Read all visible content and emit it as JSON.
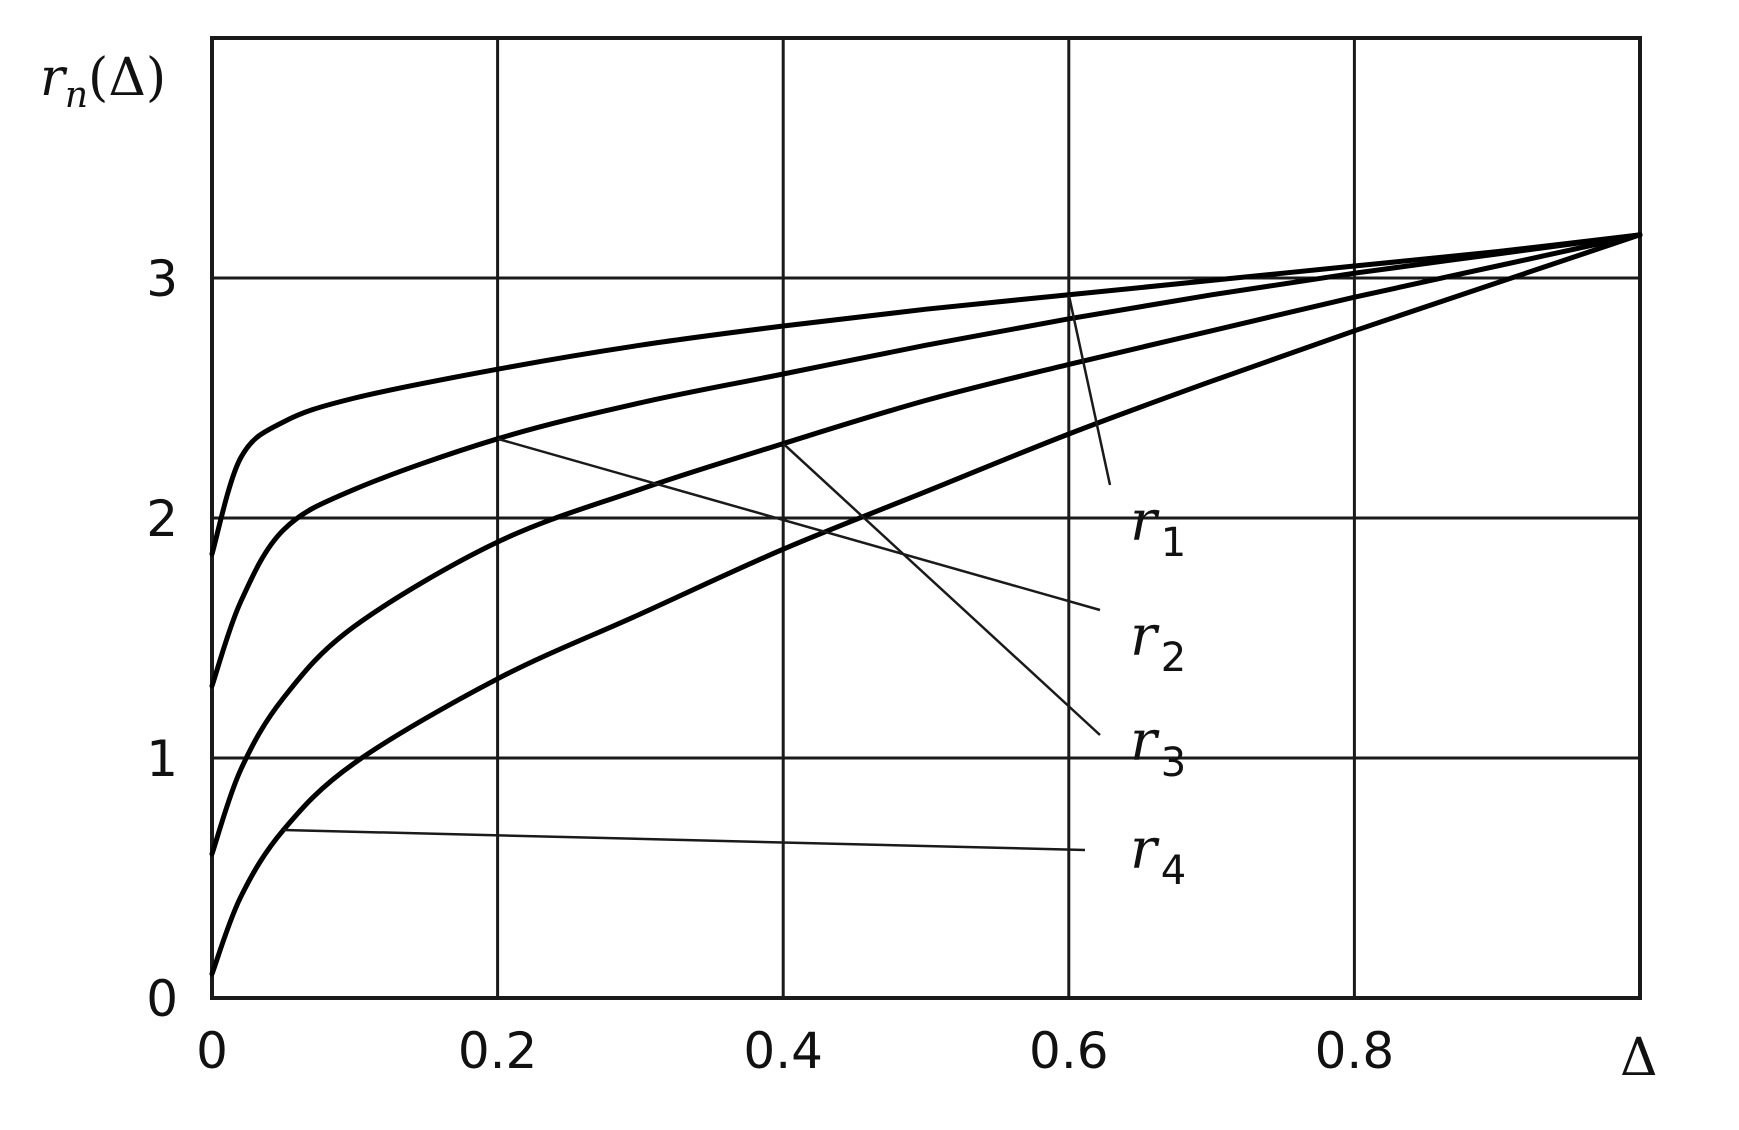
{
  "chart_data": {
    "type": "line",
    "title": "",
    "ylabel_var": "r",
    "ylabel_sub": "n",
    "ylabel_arg": "(Δ)",
    "xlabel": "Δ",
    "xlim": [
      0,
      1
    ],
    "ylim": [
      0,
      4
    ],
    "x_ticks": [
      "0",
      "0.2",
      "0.4",
      "0.6",
      "0.8"
    ],
    "y_ticks": [
      "0",
      "1",
      "2",
      "3"
    ],
    "grid": true,
    "series": [
      {
        "name": "r",
        "sub": "1",
        "x": [
          0,
          0.02,
          0.05,
          0.1,
          0.2,
          0.3,
          0.4,
          0.5,
          0.6,
          0.7,
          0.8,
          0.9,
          1.0
        ],
        "y": [
          1.85,
          2.25,
          2.4,
          2.5,
          2.62,
          2.72,
          2.8,
          2.87,
          2.93,
          2.99,
          3.05,
          3.11,
          3.18
        ]
      },
      {
        "name": "r",
        "sub": "2",
        "x": [
          0,
          0.02,
          0.05,
          0.1,
          0.2,
          0.3,
          0.4,
          0.5,
          0.6,
          0.7,
          0.8,
          0.9,
          1.0
        ],
        "y": [
          1.3,
          1.65,
          1.95,
          2.12,
          2.33,
          2.48,
          2.6,
          2.72,
          2.83,
          2.93,
          3.02,
          3.1,
          3.18
        ]
      },
      {
        "name": "r",
        "sub": "3",
        "x": [
          0,
          0.02,
          0.05,
          0.1,
          0.2,
          0.3,
          0.4,
          0.5,
          0.6,
          0.7,
          0.8,
          0.9,
          1.0
        ],
        "y": [
          0.6,
          0.95,
          1.25,
          1.55,
          1.9,
          2.12,
          2.31,
          2.49,
          2.64,
          2.78,
          2.92,
          3.05,
          3.18
        ]
      },
      {
        "name": "r",
        "sub": "4",
        "x": [
          0,
          0.02,
          0.05,
          0.1,
          0.2,
          0.3,
          0.4,
          0.5,
          0.6,
          0.7,
          0.8,
          0.9,
          1.0
        ],
        "y": [
          0.1,
          0.42,
          0.7,
          0.98,
          1.33,
          1.6,
          1.87,
          2.11,
          2.35,
          2.57,
          2.78,
          2.98,
          3.18
        ]
      }
    ],
    "legend_placement": "right-of-curves"
  }
}
